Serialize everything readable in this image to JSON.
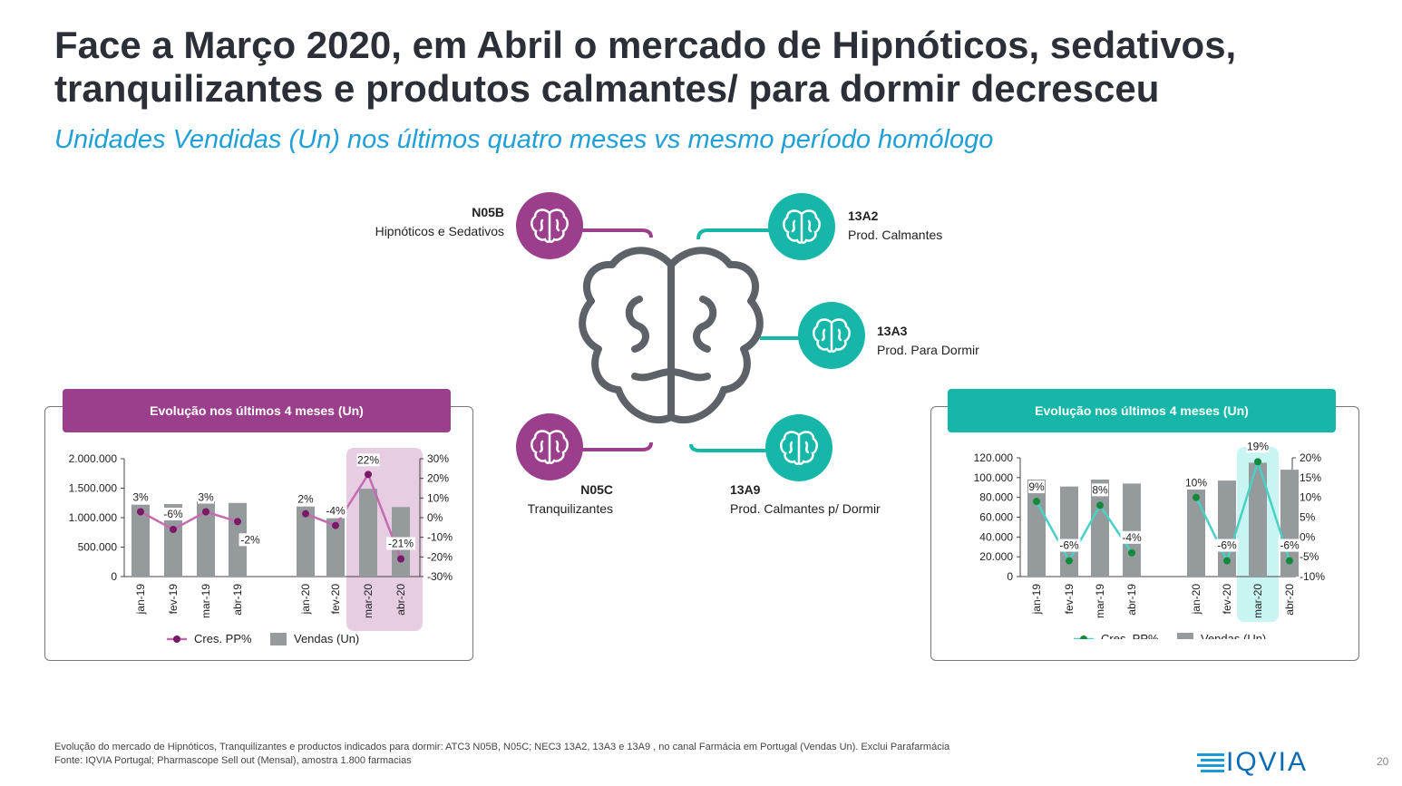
{
  "title": "Face a Março 2020, em Abril o mercado de Hipnóticos, sedativos, tranquilizantes e produtos calmantes/ para dormir decresceu",
  "subtitle": "Unidades Vendidas (Un) nos últimos quatro meses vs mesmo período homólogo",
  "categories": {
    "n05b": {
      "code": "N05B",
      "name": "Hipnóticos e Sedativos"
    },
    "n05c": {
      "code": "N05C",
      "name": "Tranquilizantes"
    },
    "a13a2": {
      "code": "13A2",
      "name": "Prod. Calmantes"
    },
    "a13a3": {
      "code": "13A3",
      "name": "Prod. Para Dormir"
    },
    "a13a9": {
      "code": "13A9",
      "name": "Prod. Calmantes p/ Dormir"
    }
  },
  "colors": {
    "purple": "#9b3f8c",
    "teal": "#16b7a8",
    "grey": "#959a9d",
    "purple_light": "#e6cde2",
    "teal_light": "#c8f4f2",
    "line_purple": "#c46cb0",
    "dot_purple": "#7a1a66",
    "line_teal": "#48d1c4",
    "dot_teal": "#118a3c"
  },
  "left_panel": {
    "header": "Evolução nos últimos 4 meses (Un)"
  },
  "right_panel": {
    "header": "Evolução nos últimos 4 meses (Un)"
  },
  "footnote_line1": "Evolução do mercado de Hipnóticos, Tranquilizantes e productos indicados para dormir: ATC3 N05B, N05C; NEC3 13A2, 13A3 e 13A9 , no canal Farmácia em Portugal (Vendas Un). Exclui Parafarmácia",
  "footnote_line2": "Fonte: IQVIA Portugal; Pharmascope Sell out (Mensal), amostra 1.800 farmacias",
  "logo_text": "IQVIA",
  "page_number": "20",
  "chart_data": [
    {
      "type": "bar",
      "categories": [
        "jan-19",
        "fev-19",
        "mar-19",
        "abr-19",
        "jan-20",
        "fev-20",
        "mar-20",
        "abr-20"
      ],
      "series": [
        {
          "name": "Vendas (Un)",
          "type": "bar",
          "axis": "left",
          "values": [
            1220000,
            1230000,
            1280000,
            1250000,
            1190000,
            990000,
            1490000,
            1180000
          ]
        },
        {
          "name": "Cres. PP%",
          "type": "line",
          "axis": "right",
          "values": [
            3,
            -6,
            3,
            -2,
            2,
            -4,
            22,
            -21
          ],
          "labels": [
            "3%",
            "-6%",
            "3%",
            "-2%",
            "2%",
            "-4%",
            "22%",
            "-21%"
          ]
        }
      ],
      "left_ticks": [
        "2.000.000",
        "1.500.000",
        "1.000.000",
        "500.000",
        "0"
      ],
      "right_ticks": [
        "30%",
        "20%",
        "10%",
        "0%",
        "-10%",
        "-20%",
        "-30%"
      ],
      "ylim": [
        0,
        2000000
      ],
      "y2lim": [
        -30,
        30
      ],
      "highlight": [
        "mar-20",
        "abr-20"
      ],
      "legend_position": "bottom"
    },
    {
      "type": "bar",
      "categories": [
        "jan-19",
        "fev-19",
        "mar-19",
        "abr-19",
        "jan-20",
        "fev-20",
        "mar-20",
        "abr-20"
      ],
      "series": [
        {
          "name": "Vendas (Un)",
          "type": "bar",
          "axis": "left",
          "values": [
            98000,
            91000,
            98000,
            94000,
            88000,
            97000,
            115000,
            108000
          ]
        },
        {
          "name": "Cres. PP%",
          "type": "line",
          "axis": "right",
          "values": [
            9,
            -6,
            8,
            -4,
            10,
            -6,
            19,
            -6
          ],
          "labels": [
            "9%",
            "-6%",
            "8%",
            "-4%",
            "10%",
            "-6%",
            "19%",
            "-6%"
          ]
        }
      ],
      "left_ticks": [
        "120.000",
        "100.000",
        "80.000",
        "60.000",
        "40.000",
        "20.000",
        "0"
      ],
      "right_ticks": [
        "20%",
        "15%",
        "10%",
        "5%",
        "0%",
        "-5%",
        "-10%"
      ],
      "ylim": [
        0,
        120000
      ],
      "y2lim": [
        -10,
        20
      ],
      "highlight": [
        "mar-20"
      ],
      "legend_position": "bottom"
    }
  ]
}
